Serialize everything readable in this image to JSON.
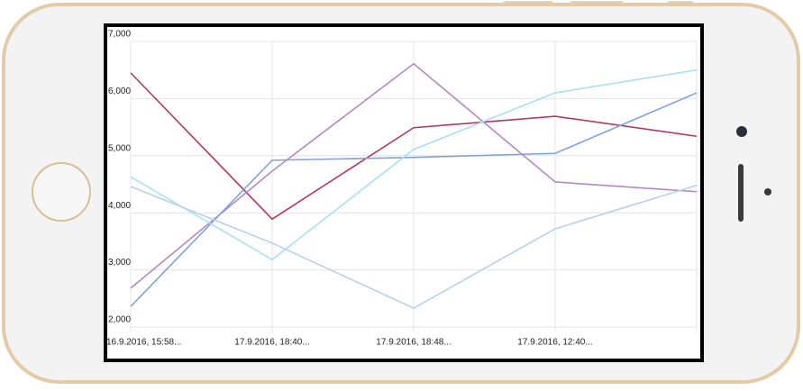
{
  "chart_data": {
    "type": "line",
    "categories": [
      "16.9.2016, 15:58...",
      "17.9.2016, 18:40...",
      "17.9.2016, 18:48...",
      "17.9.2016, 12:40...",
      null
    ],
    "series": [
      {
        "color": "#b23a5e",
        "values": [
          6450,
          3890,
          5490,
          5690,
          5340
        ]
      },
      {
        "color": "#b48ac0",
        "values": [
          2680,
          4730,
          6610,
          4540,
          4370
        ]
      },
      {
        "color": "#7fa2e4",
        "values": [
          2360,
          4920,
          4970,
          5040,
          6100
        ]
      },
      {
        "color": "#a9e0f2",
        "values": [
          4630,
          3180,
          5110,
          6100,
          6500
        ]
      },
      {
        "color": "#b9cfea",
        "values": [
          4460,
          3470,
          2330,
          3720,
          4480
        ]
      }
    ],
    "ylim": [
      2000,
      7000
    ],
    "yticks": [
      {
        "value": 2000,
        "label": "2,000"
      },
      {
        "value": 3000,
        "label": "3,000"
      },
      {
        "value": 4000,
        "label": "4,000"
      },
      {
        "value": 5000,
        "label": "5,000"
      },
      {
        "value": 6000,
        "label": "6,000"
      },
      {
        "value": 7000,
        "label": "7,000"
      }
    ],
    "grid": true
  }
}
